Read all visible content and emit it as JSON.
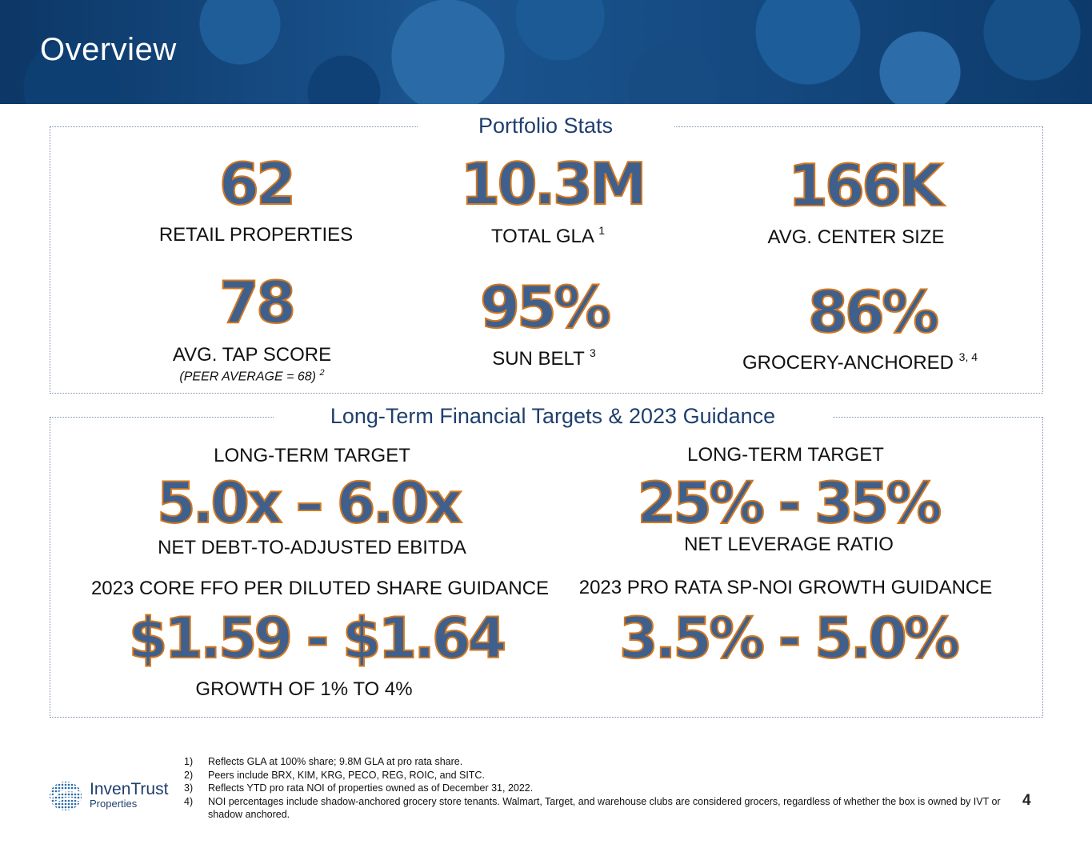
{
  "header": {
    "title": "Overview"
  },
  "portfolio": {
    "title": "Portfolio Stats",
    "stats": [
      {
        "value": "62",
        "label": "RETAIL PROPERTIES"
      },
      {
        "value": "10.3M",
        "label": "TOTAL GLA",
        "sup": "1"
      },
      {
        "value": "166K",
        "label": "AVG. CENTER SIZE"
      },
      {
        "value": "78",
        "label": "AVG. TAP SCORE",
        "note": "(PEER AVERAGE = 68)",
        "note_sup": "2"
      },
      {
        "value": "95%",
        "label": "SUN BELT",
        "sup": "3"
      },
      {
        "value": "86%",
        "label": "GROCERY-ANCHORED",
        "sup": "3, 4"
      }
    ]
  },
  "financial": {
    "title": "Long-Term Financial Targets & 2023 Guidance",
    "items": [
      {
        "heading": "LONG-TERM TARGET",
        "value": "5.0x – 6.0x",
        "label": "NET DEBT-TO-ADJUSTED EBITDA"
      },
      {
        "heading": "LONG-TERM TARGET",
        "value": "25% - 35%",
        "label": "NET LEVERAGE RATIO"
      },
      {
        "heading": "2023 CORE FFO PER DILUTED SHARE GUIDANCE",
        "value": "$1.59 - $1.64",
        "label": "GROWTH OF 1% TO 4%"
      },
      {
        "heading": "2023 PRO RATA SP-NOI GROWTH GUIDANCE",
        "value": "3.5% - 5.0%"
      }
    ]
  },
  "footnotes": [
    {
      "num": "1)",
      "text": "Reflects GLA at 100% share; 9.8M GLA at pro rata share."
    },
    {
      "num": "2)",
      "text": "Peers include BRX, KIM, KRG, PECO, REG, ROIC, and SITC."
    },
    {
      "num": "3)",
      "text": "Reflects YTD pro rata NOI of properties owned as of December 31, 2022."
    },
    {
      "num": "4)",
      "text": "NOI percentages include shadow-anchored grocery store tenants. Walmart, Target, and warehouse clubs are considered grocers, regardless of whether the box is owned by IVT or shadow anchored."
    }
  ],
  "logo": {
    "name": "InvenTrust",
    "sub": "Properties"
  },
  "page_number": "4"
}
